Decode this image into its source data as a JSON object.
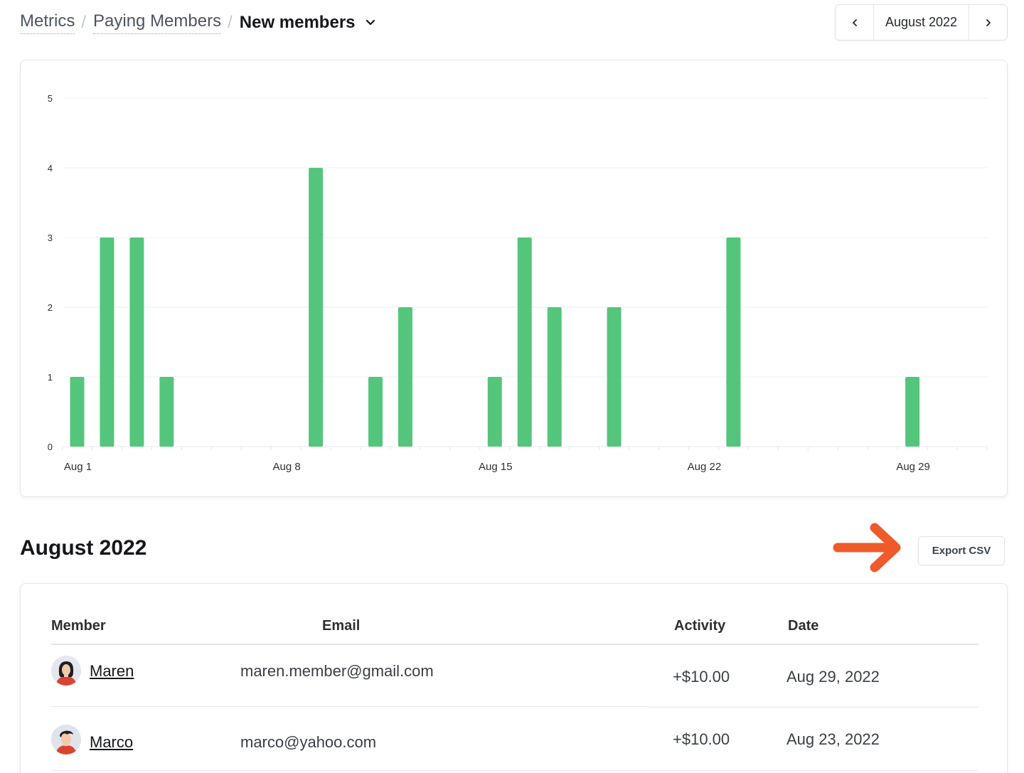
{
  "breadcrumb": {
    "items": [
      "Metrics",
      "Paying Members"
    ],
    "current": "New members"
  },
  "month_picker": {
    "label": "August 2022",
    "prev_icon": "chevron-left-icon",
    "next_icon": "chevron-right-icon"
  },
  "chart_data": {
    "type": "bar",
    "title": "",
    "xlabel": "",
    "ylabel": "",
    "ylim": [
      0,
      5
    ],
    "yticks": [
      "0",
      "1",
      "2",
      "3",
      "4",
      "5"
    ],
    "xtick_labels": [
      {
        "label": "Aug 1",
        "day": 1
      },
      {
        "label": "Aug 8",
        "day": 8
      },
      {
        "label": "Aug 15",
        "day": 15
      },
      {
        "label": "Aug 22",
        "day": 22
      },
      {
        "label": "Aug 29",
        "day": 29
      }
    ],
    "categories": [
      "Aug 1",
      "Aug 2",
      "Aug 3",
      "Aug 4",
      "Aug 5",
      "Aug 6",
      "Aug 7",
      "Aug 8",
      "Aug 9",
      "Aug 10",
      "Aug 11",
      "Aug 12",
      "Aug 13",
      "Aug 14",
      "Aug 15",
      "Aug 16",
      "Aug 17",
      "Aug 18",
      "Aug 19",
      "Aug 20",
      "Aug 21",
      "Aug 22",
      "Aug 23",
      "Aug 24",
      "Aug 25",
      "Aug 26",
      "Aug 27",
      "Aug 28",
      "Aug 29",
      "Aug 30",
      "Aug 31"
    ],
    "values": [
      1,
      3,
      3,
      1,
      0,
      0,
      0,
      0,
      4,
      0,
      1,
      2,
      0,
      0,
      1,
      3,
      2,
      0,
      2,
      0,
      0,
      0,
      3,
      0,
      0,
      0,
      0,
      0,
      1,
      0,
      0
    ],
    "bar_color": "#53c67b"
  },
  "section": {
    "title": "August 2022",
    "export_label": "Export CSV"
  },
  "table": {
    "headers": {
      "member": "Member",
      "email": "Email",
      "activity": "Activity",
      "date": "Date"
    },
    "rows": [
      {
        "name": "Maren",
        "email": "maren.member@gmail.com",
        "activity": "+$10.00",
        "date": "Aug 29, 2022"
      },
      {
        "name": "Marco",
        "email": "marco@yahoo.com",
        "activity": "+$10.00",
        "date": "Aug 23, 2022"
      }
    ]
  },
  "colors": {
    "accent_arrow": "#ef5a2a",
    "bar": "#53c67b"
  }
}
